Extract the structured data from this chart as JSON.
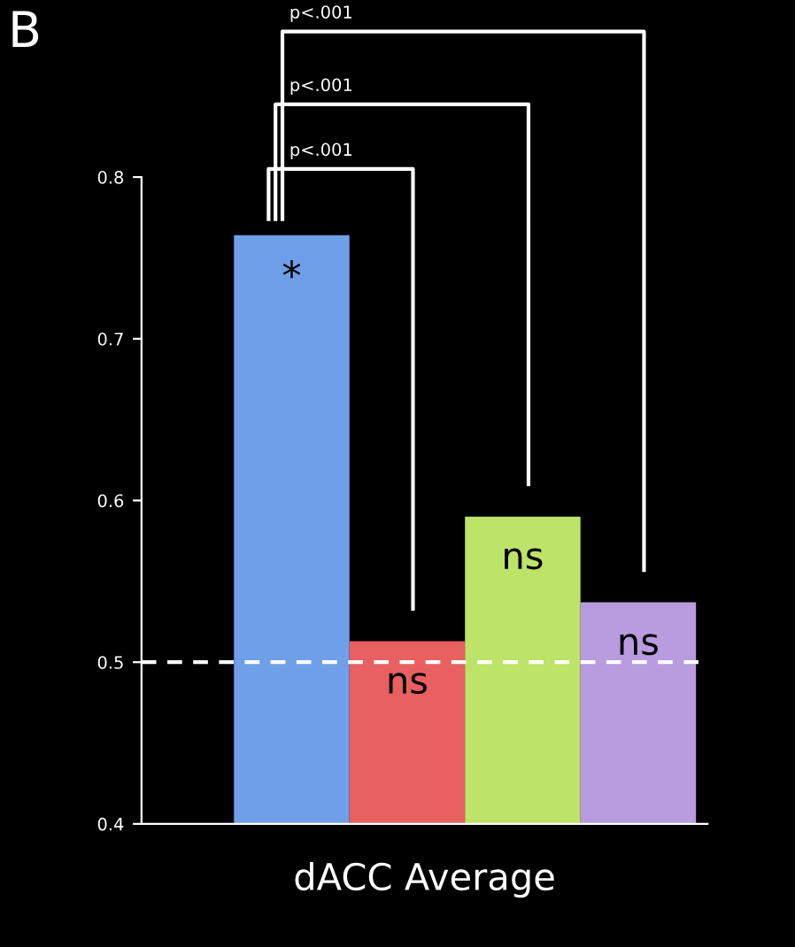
{
  "chart_data": {
    "type": "bar",
    "title": "B",
    "xlabel": "dACC Average",
    "categories": [
      null,
      null,
      null,
      null
    ],
    "values": [
      0.764,
      0.513,
      0.59,
      0.537
    ],
    "colors": [
      "#6f9fe8",
      "#e86060",
      "#bde368",
      "#b99be0"
    ],
    "value_labels": [
      "*",
      "ns",
      "ns",
      "ns"
    ],
    "ylim": [
      0.4,
      0.8
    ],
    "yticks": [
      0.4,
      0.5,
      0.6,
      0.7,
      0.8
    ],
    "grid": false,
    "ref_lines": [
      {
        "axis": "y",
        "value": 0.5,
        "color": "#ffffff",
        "line_style": "dashed"
      }
    ],
    "annotations": [
      "p<.001",
      "p<.001",
      "p<.001"
    ]
  }
}
